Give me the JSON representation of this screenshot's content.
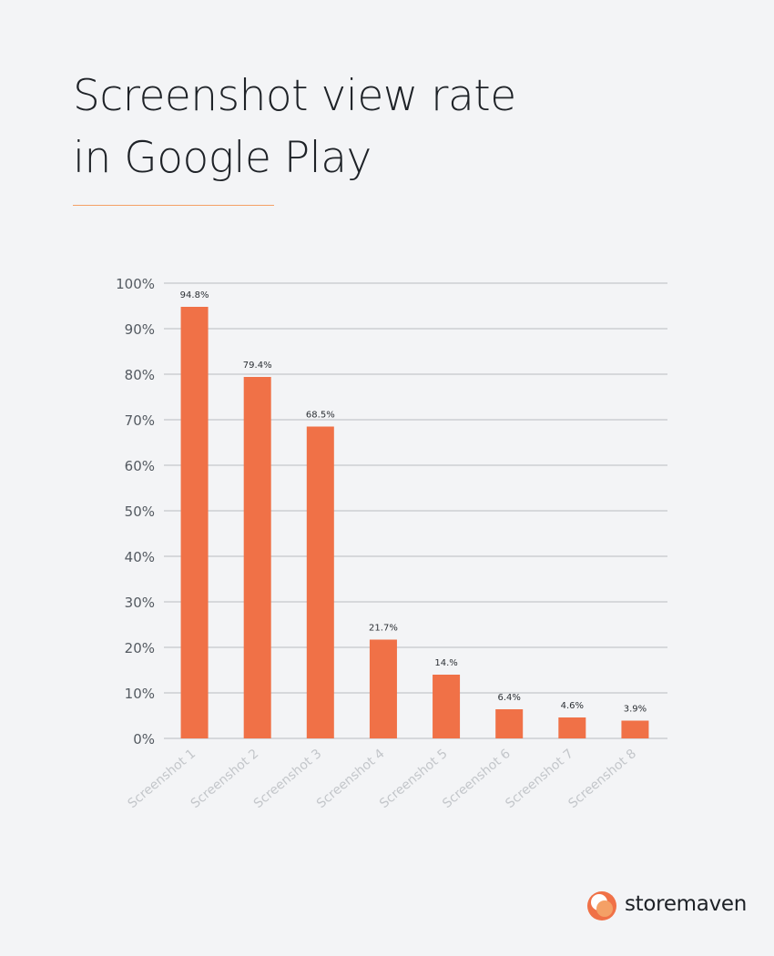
{
  "title_line1": "Screenshot view rate",
  "title_line2": "in Google Play",
  "brand": "storemaven",
  "colors": {
    "bar": "#f07147",
    "accent_line": "#f4a066",
    "background": "#f3f4f6",
    "grid": "#b9bcc0",
    "tick_text": "#545a61",
    "category_text": "#c3c6ca"
  },
  "chart_data": {
    "type": "bar",
    "categories": [
      "Screenshot 1",
      "Screenshot 2",
      "Screenshot 3",
      "Screenshot 4",
      "Screenshot 5",
      "Screenshot 6",
      "Screenshot 7",
      "Screenshot 8"
    ],
    "values": [
      94.8,
      79.4,
      68.5,
      21.7,
      14.0,
      6.4,
      4.6,
      3.9
    ],
    "data_labels": [
      "94.8%",
      "79.4%",
      "68.5%",
      "21.7%",
      "14.%",
      "6.4%",
      "4.6%",
      "3.9%"
    ],
    "ylim": [
      0,
      100
    ],
    "yticks": [
      0,
      10,
      20,
      30,
      40,
      50,
      60,
      70,
      80,
      90,
      100
    ],
    "ytick_labels": [
      "0%",
      "10%",
      "20%",
      "30%",
      "40%",
      "50%",
      "60%",
      "70%",
      "80%",
      "90%",
      "100%"
    ],
    "grid": true,
    "legend": "none"
  }
}
